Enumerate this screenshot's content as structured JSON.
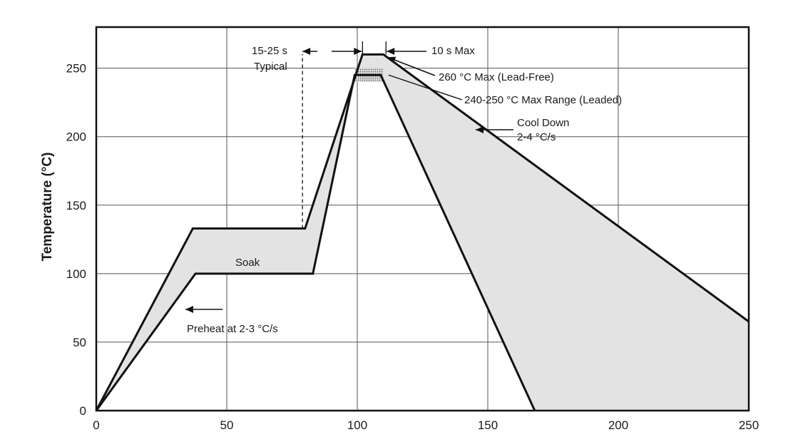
{
  "chart_data": {
    "type": "area",
    "title": "",
    "xlabel": "",
    "ylabel": "Temperature (°C)",
    "xlim": [
      0,
      250
    ],
    "ylim": [
      0,
      280
    ],
    "xticks": [
      0,
      50,
      100,
      150,
      200,
      250
    ],
    "yticks": [
      0,
      50,
      100,
      150,
      200,
      250
    ],
    "grid": true,
    "series": [
      {
        "role": "upper-limit",
        "x": [
          0,
          37,
          80,
          102,
          110,
          250
        ],
        "y": [
          0,
          133,
          133,
          260,
          260,
          65
        ]
      },
      {
        "role": "lower-limit",
        "x": [
          0,
          38,
          83,
          99,
          109,
          168
        ],
        "y": [
          0,
          100,
          100,
          245,
          245,
          0
        ]
      }
    ],
    "band_240_250": {
      "x": [
        99,
        110
      ],
      "y": [
        240,
        250
      ]
    },
    "annotations": {
      "typical_time": "15-25 s",
      "typical_word": "Typical",
      "max_time": "10 s Max",
      "peak_leadfree": "260 °C Max (Lead-Free)",
      "peak_leaded": "240-250 °C Max Range (Leaded)",
      "cool_line1": "Cool Down",
      "cool_line2": "2-4 °C/s",
      "soak": "Soak",
      "preheat": "Preheat at 2-3 °C/s"
    }
  }
}
